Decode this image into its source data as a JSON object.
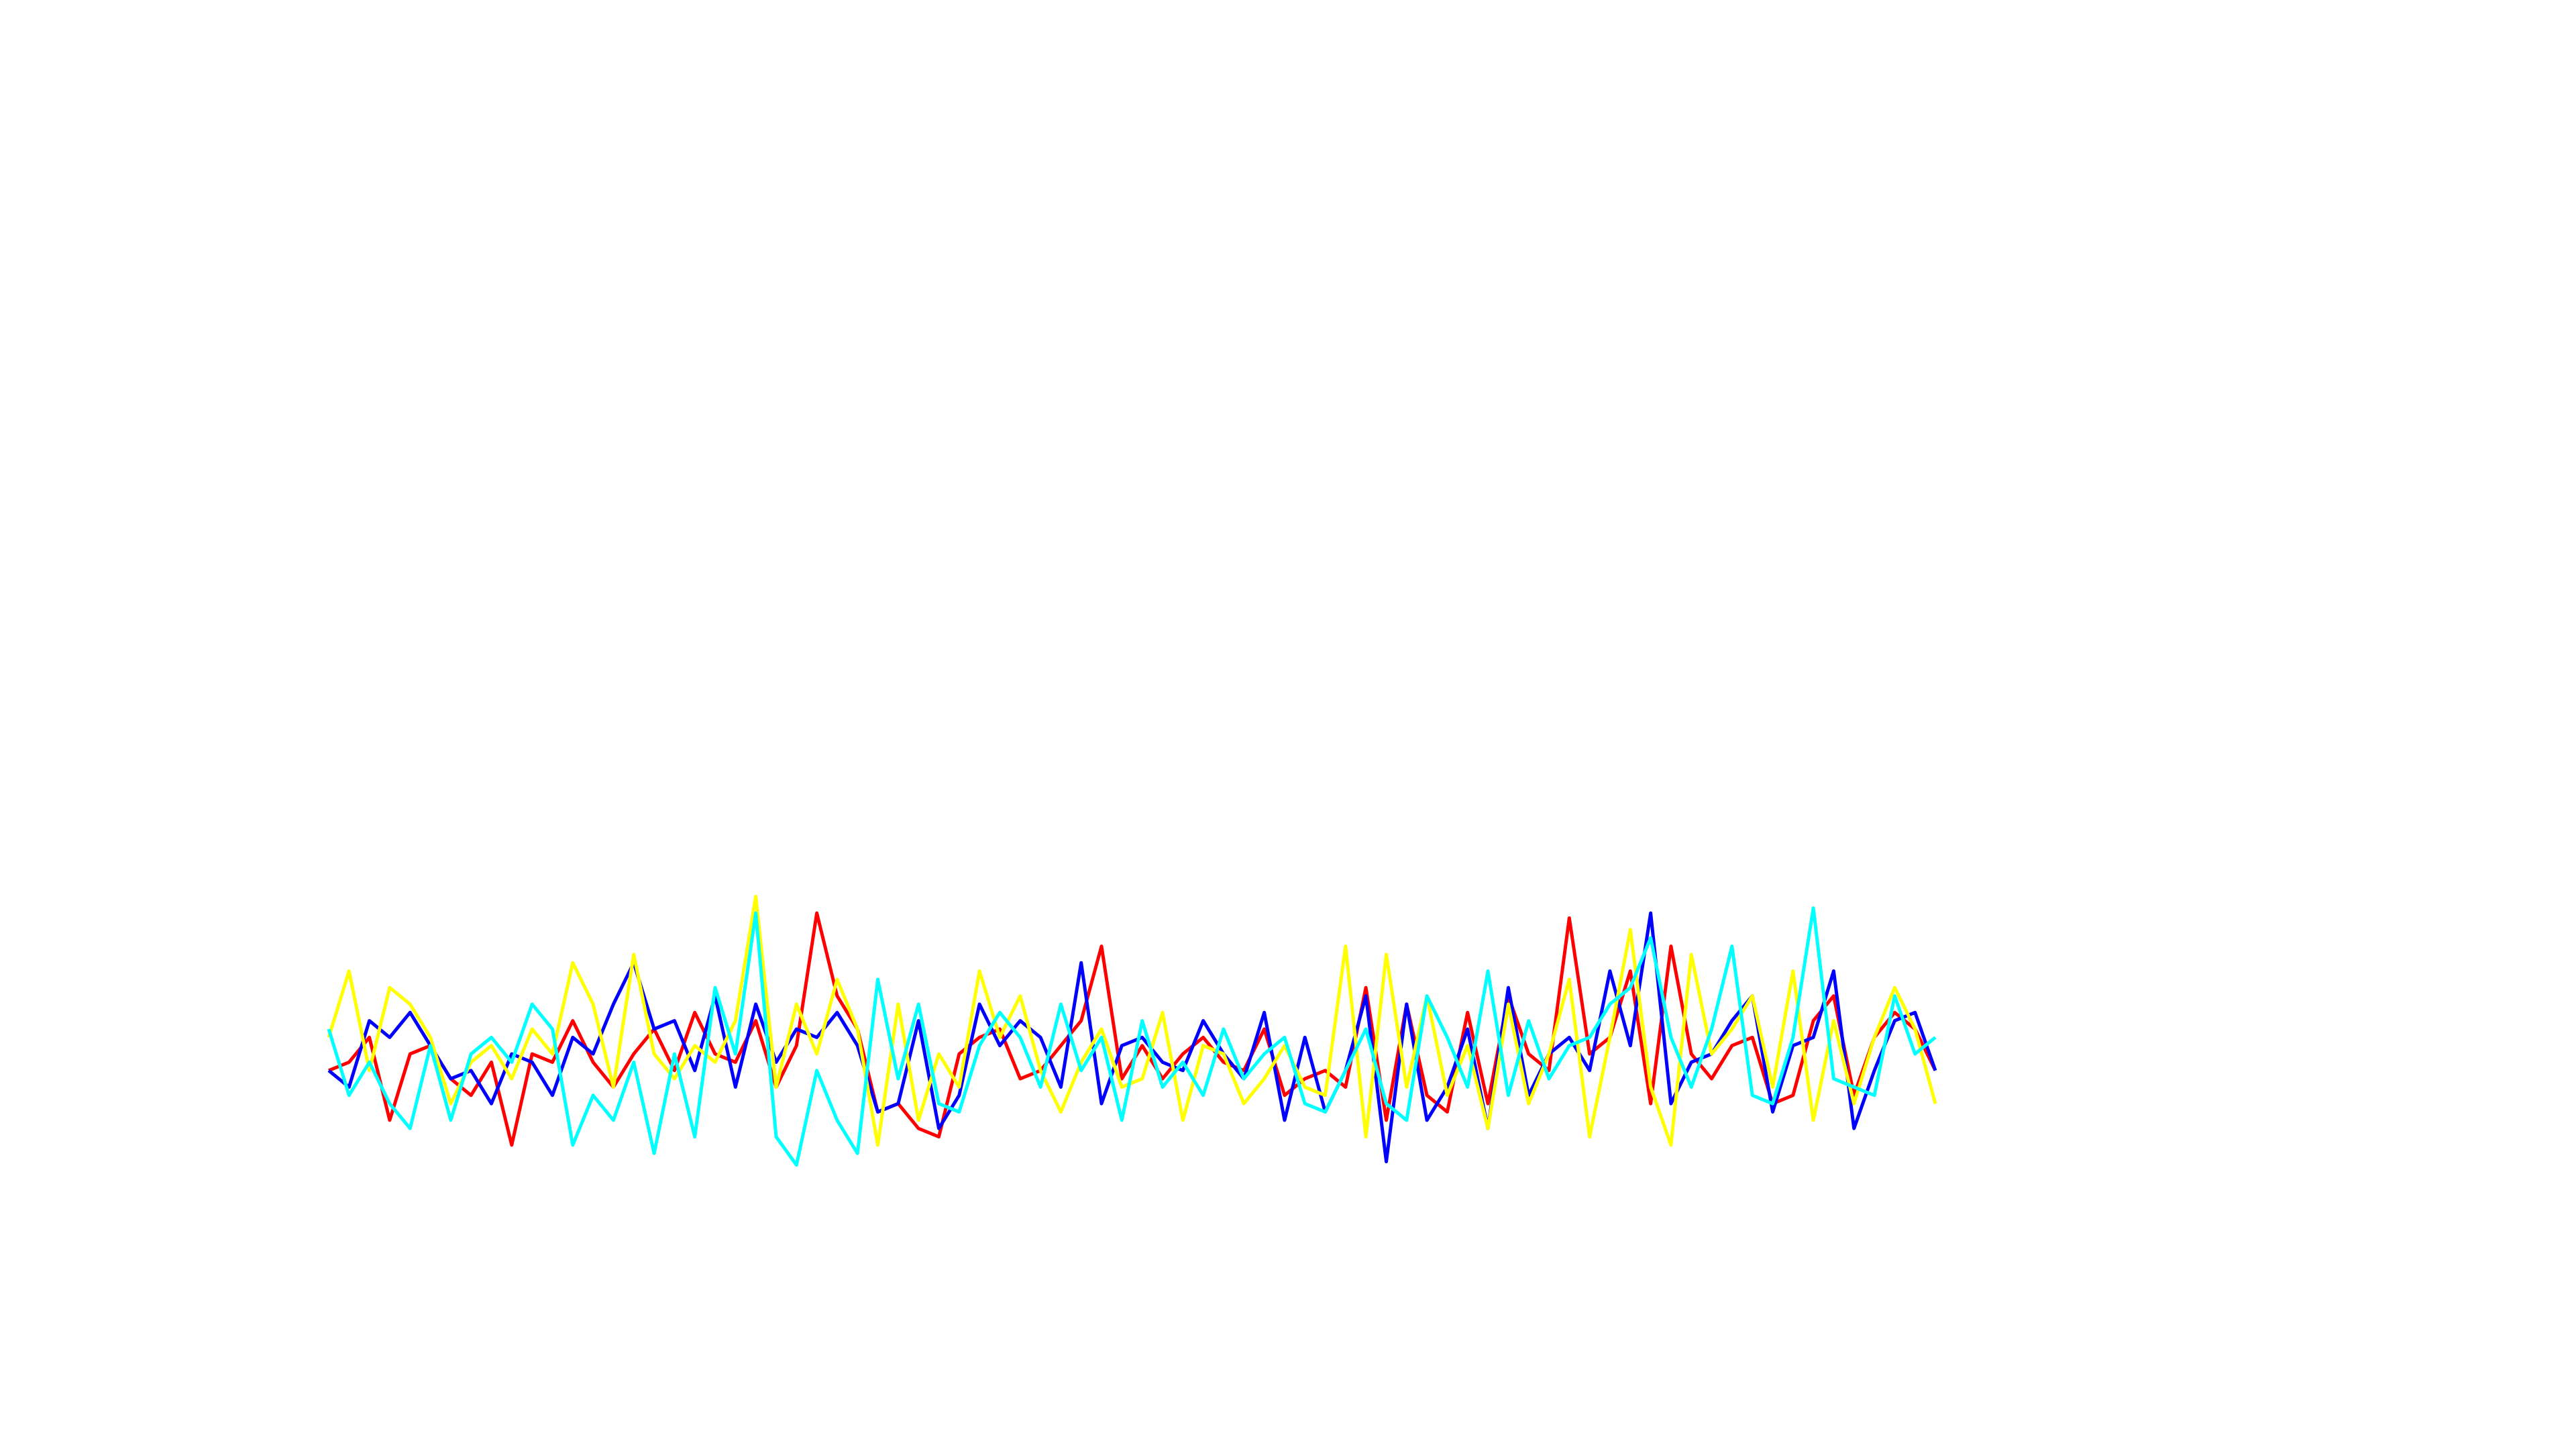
{
  "chart_data": {
    "type": "line",
    "x": [
      0,
      1,
      2,
      3,
      4,
      5,
      6,
      7,
      8,
      9,
      10,
      11,
      12,
      13,
      14,
      15,
      16,
      17,
      18,
      19,
      20,
      21,
      22,
      23,
      24,
      25,
      26,
      27,
      28,
      29,
      30,
      31,
      32,
      33,
      34,
      35,
      36,
      37,
      38,
      39,
      40,
      41,
      42,
      43,
      44,
      45,
      46,
      47,
      48,
      49,
      50,
      51,
      52,
      53,
      54,
      55,
      56,
      57,
      58,
      59,
      60,
      61,
      62,
      63,
      64,
      65,
      66,
      67,
      68,
      69,
      70,
      71,
      72,
      73,
      74,
      75,
      76,
      77,
      78,
      79
    ],
    "xlim": [
      0,
      79
    ],
    "ylim": [
      -60,
      110
    ],
    "series": [
      {
        "color": "#ff0000",
        "values": [
          0,
          5,
          20,
          -30,
          10,
          15,
          -5,
          -15,
          5,
          -45,
          10,
          5,
          30,
          5,
          -10,
          10,
          25,
          0,
          35,
          10,
          5,
          30,
          -10,
          15,
          95,
          45,
          25,
          -25,
          -20,
          -35,
          -40,
          10,
          20,
          25,
          -5,
          0,
          15,
          30,
          75,
          -5,
          15,
          -5,
          10,
          20,
          5,
          0,
          25,
          -15,
          -5,
          0,
          -10,
          50,
          -30,
          40,
          -15,
          -25,
          35,
          -20,
          45,
          10,
          0,
          92,
          10,
          20,
          60,
          -20,
          75,
          10,
          -5,
          15,
          20,
          -20,
          -15,
          30,
          45,
          -15,
          20,
          35,
          25,
          0
        ]
      },
      {
        "color": "#0000ff",
        "values": [
          0,
          -10,
          30,
          20,
          35,
          15,
          -5,
          0,
          -20,
          10,
          5,
          -15,
          20,
          10,
          40,
          65,
          25,
          30,
          0,
          45,
          -10,
          40,
          5,
          25,
          20,
          35,
          15,
          -25,
          -20,
          30,
          -35,
          -15,
          40,
          15,
          30,
          20,
          -10,
          65,
          -20,
          15,
          20,
          5,
          0,
          30,
          10,
          -5,
          35,
          -30,
          20,
          -25,
          0,
          45,
          -55,
          40,
          -30,
          -10,
          25,
          -35,
          50,
          -15,
          10,
          20,
          0,
          60,
          15,
          95,
          -20,
          5,
          10,
          30,
          45,
          -25,
          15,
          20,
          60,
          -35,
          0,
          30,
          35,
          0
        ]
      },
      {
        "color": "#ffff00",
        "values": [
          20,
          60,
          0,
          50,
          40,
          20,
          -20,
          5,
          15,
          -5,
          25,
          10,
          65,
          40,
          -10,
          70,
          10,
          -5,
          15,
          5,
          30,
          105,
          -10,
          40,
          10,
          55,
          25,
          -45,
          40,
          -30,
          10,
          -10,
          60,
          20,
          45,
          0,
          -25,
          5,
          25,
          -10,
          -5,
          35,
          -30,
          15,
          10,
          -20,
          -5,
          15,
          -10,
          -15,
          75,
          -40,
          70,
          -10,
          45,
          -15,
          15,
          -35,
          40,
          -20,
          10,
          55,
          -40,
          20,
          85,
          -10,
          -45,
          70,
          10,
          25,
          45,
          -10,
          60,
          -30,
          30,
          -20,
          20,
          50,
          25,
          -20
        ]
      },
      {
        "color": "#00ffff",
        "values": [
          25,
          -15,
          5,
          -20,
          -35,
          15,
          -30,
          10,
          20,
          5,
          40,
          25,
          -45,
          -15,
          -30,
          5,
          -50,
          10,
          -40,
          50,
          10,
          95,
          -40,
          -57,
          0,
          -30,
          -50,
          55,
          -5,
          40,
          -20,
          -25,
          15,
          35,
          20,
          -10,
          40,
          0,
          20,
          -30,
          30,
          -10,
          5,
          -15,
          25,
          -5,
          10,
          20,
          -20,
          -25,
          0,
          25,
          -20,
          -30,
          45,
          20,
          -10,
          60,
          -15,
          30,
          -5,
          15,
          20,
          40,
          50,
          80,
          20,
          -10,
          25,
          75,
          -15,
          -20,
          20,
          98,
          -5,
          -10,
          -15,
          45,
          10,
          20
        ]
      }
    ]
  }
}
